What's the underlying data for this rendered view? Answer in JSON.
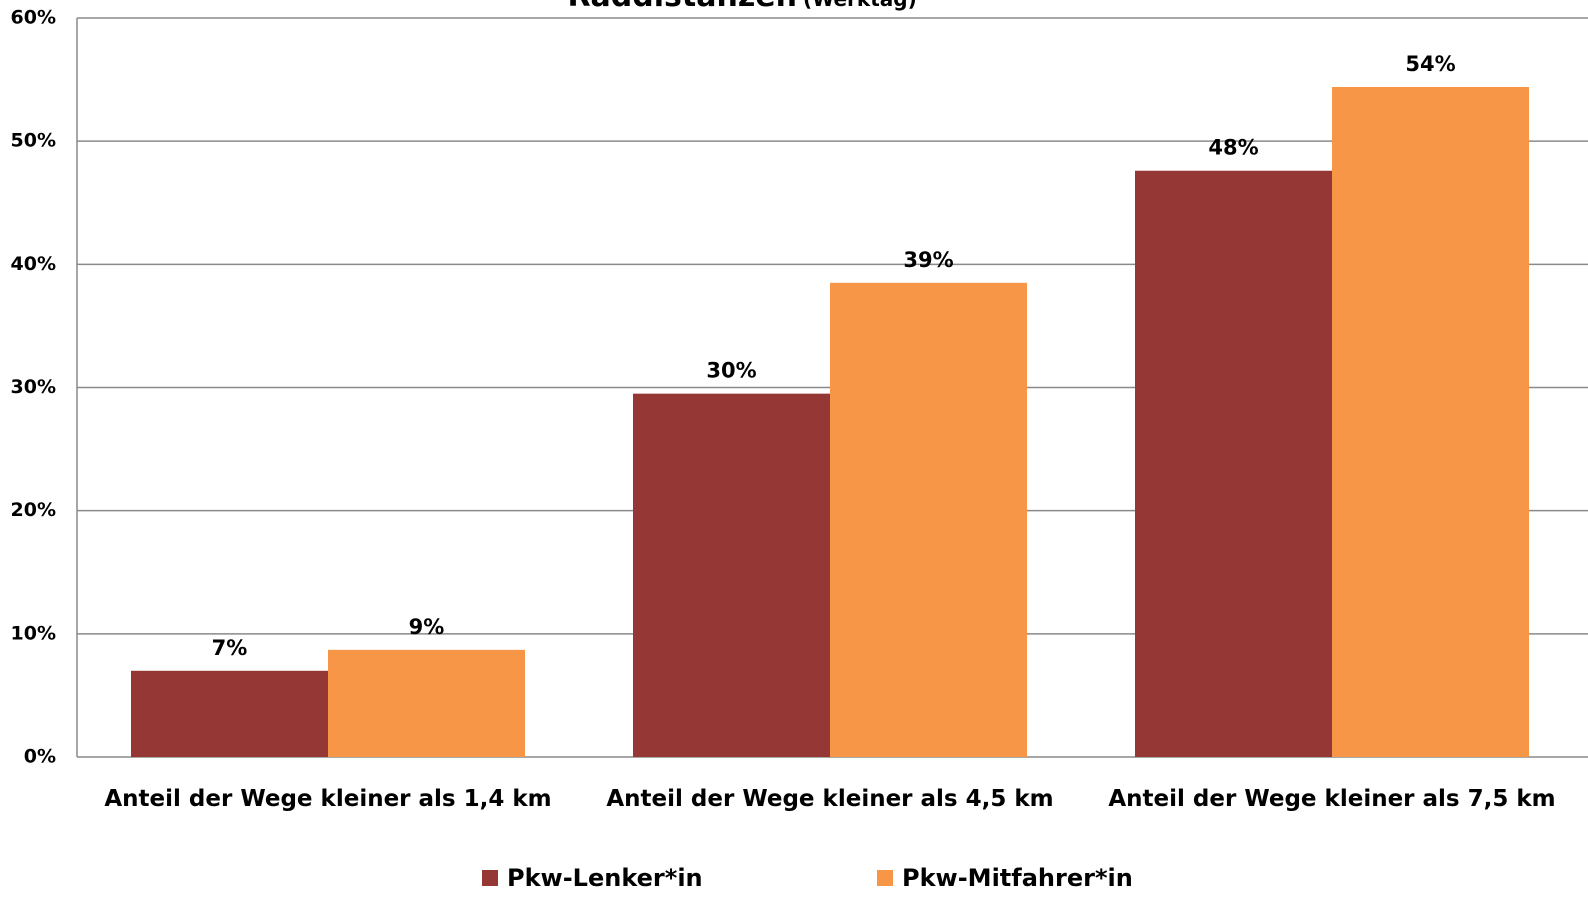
{
  "chart_data": {
    "type": "bar",
    "title": "Raddistanzen",
    "subtitle": "(Werktag)",
    "categories": [
      "Anteil der Wege kleiner als 1,4 km",
      "Anteil der Wege kleiner als 4,5 km",
      "Anteil der Wege kleiner als 7,5 km"
    ],
    "series": [
      {
        "name": "Pkw-Lenker*in",
        "color": "#953735",
        "values": [
          7.0,
          29.5,
          47.6
        ],
        "value_labels": [
          "7%",
          "30%",
          "48%"
        ]
      },
      {
        "name": "Pkw-Mitfahrer*in",
        "color": "#f79646",
        "values": [
          8.7,
          38.5,
          54.4
        ],
        "value_labels": [
          "9%",
          "39%",
          "54%"
        ]
      }
    ],
    "ylim": [
      0,
      60
    ],
    "yticks": [
      {
        "value": 0,
        "label": "0%"
      },
      {
        "value": 10,
        "label": "10%"
      },
      {
        "value": 20,
        "label": "20%"
      },
      {
        "value": 30,
        "label": "30%"
      },
      {
        "value": 40,
        "label": "40%"
      },
      {
        "value": 50,
        "label": "50%"
      },
      {
        "value": 60,
        "label": "60%"
      }
    ],
    "grid": true,
    "legend": "bottom"
  }
}
